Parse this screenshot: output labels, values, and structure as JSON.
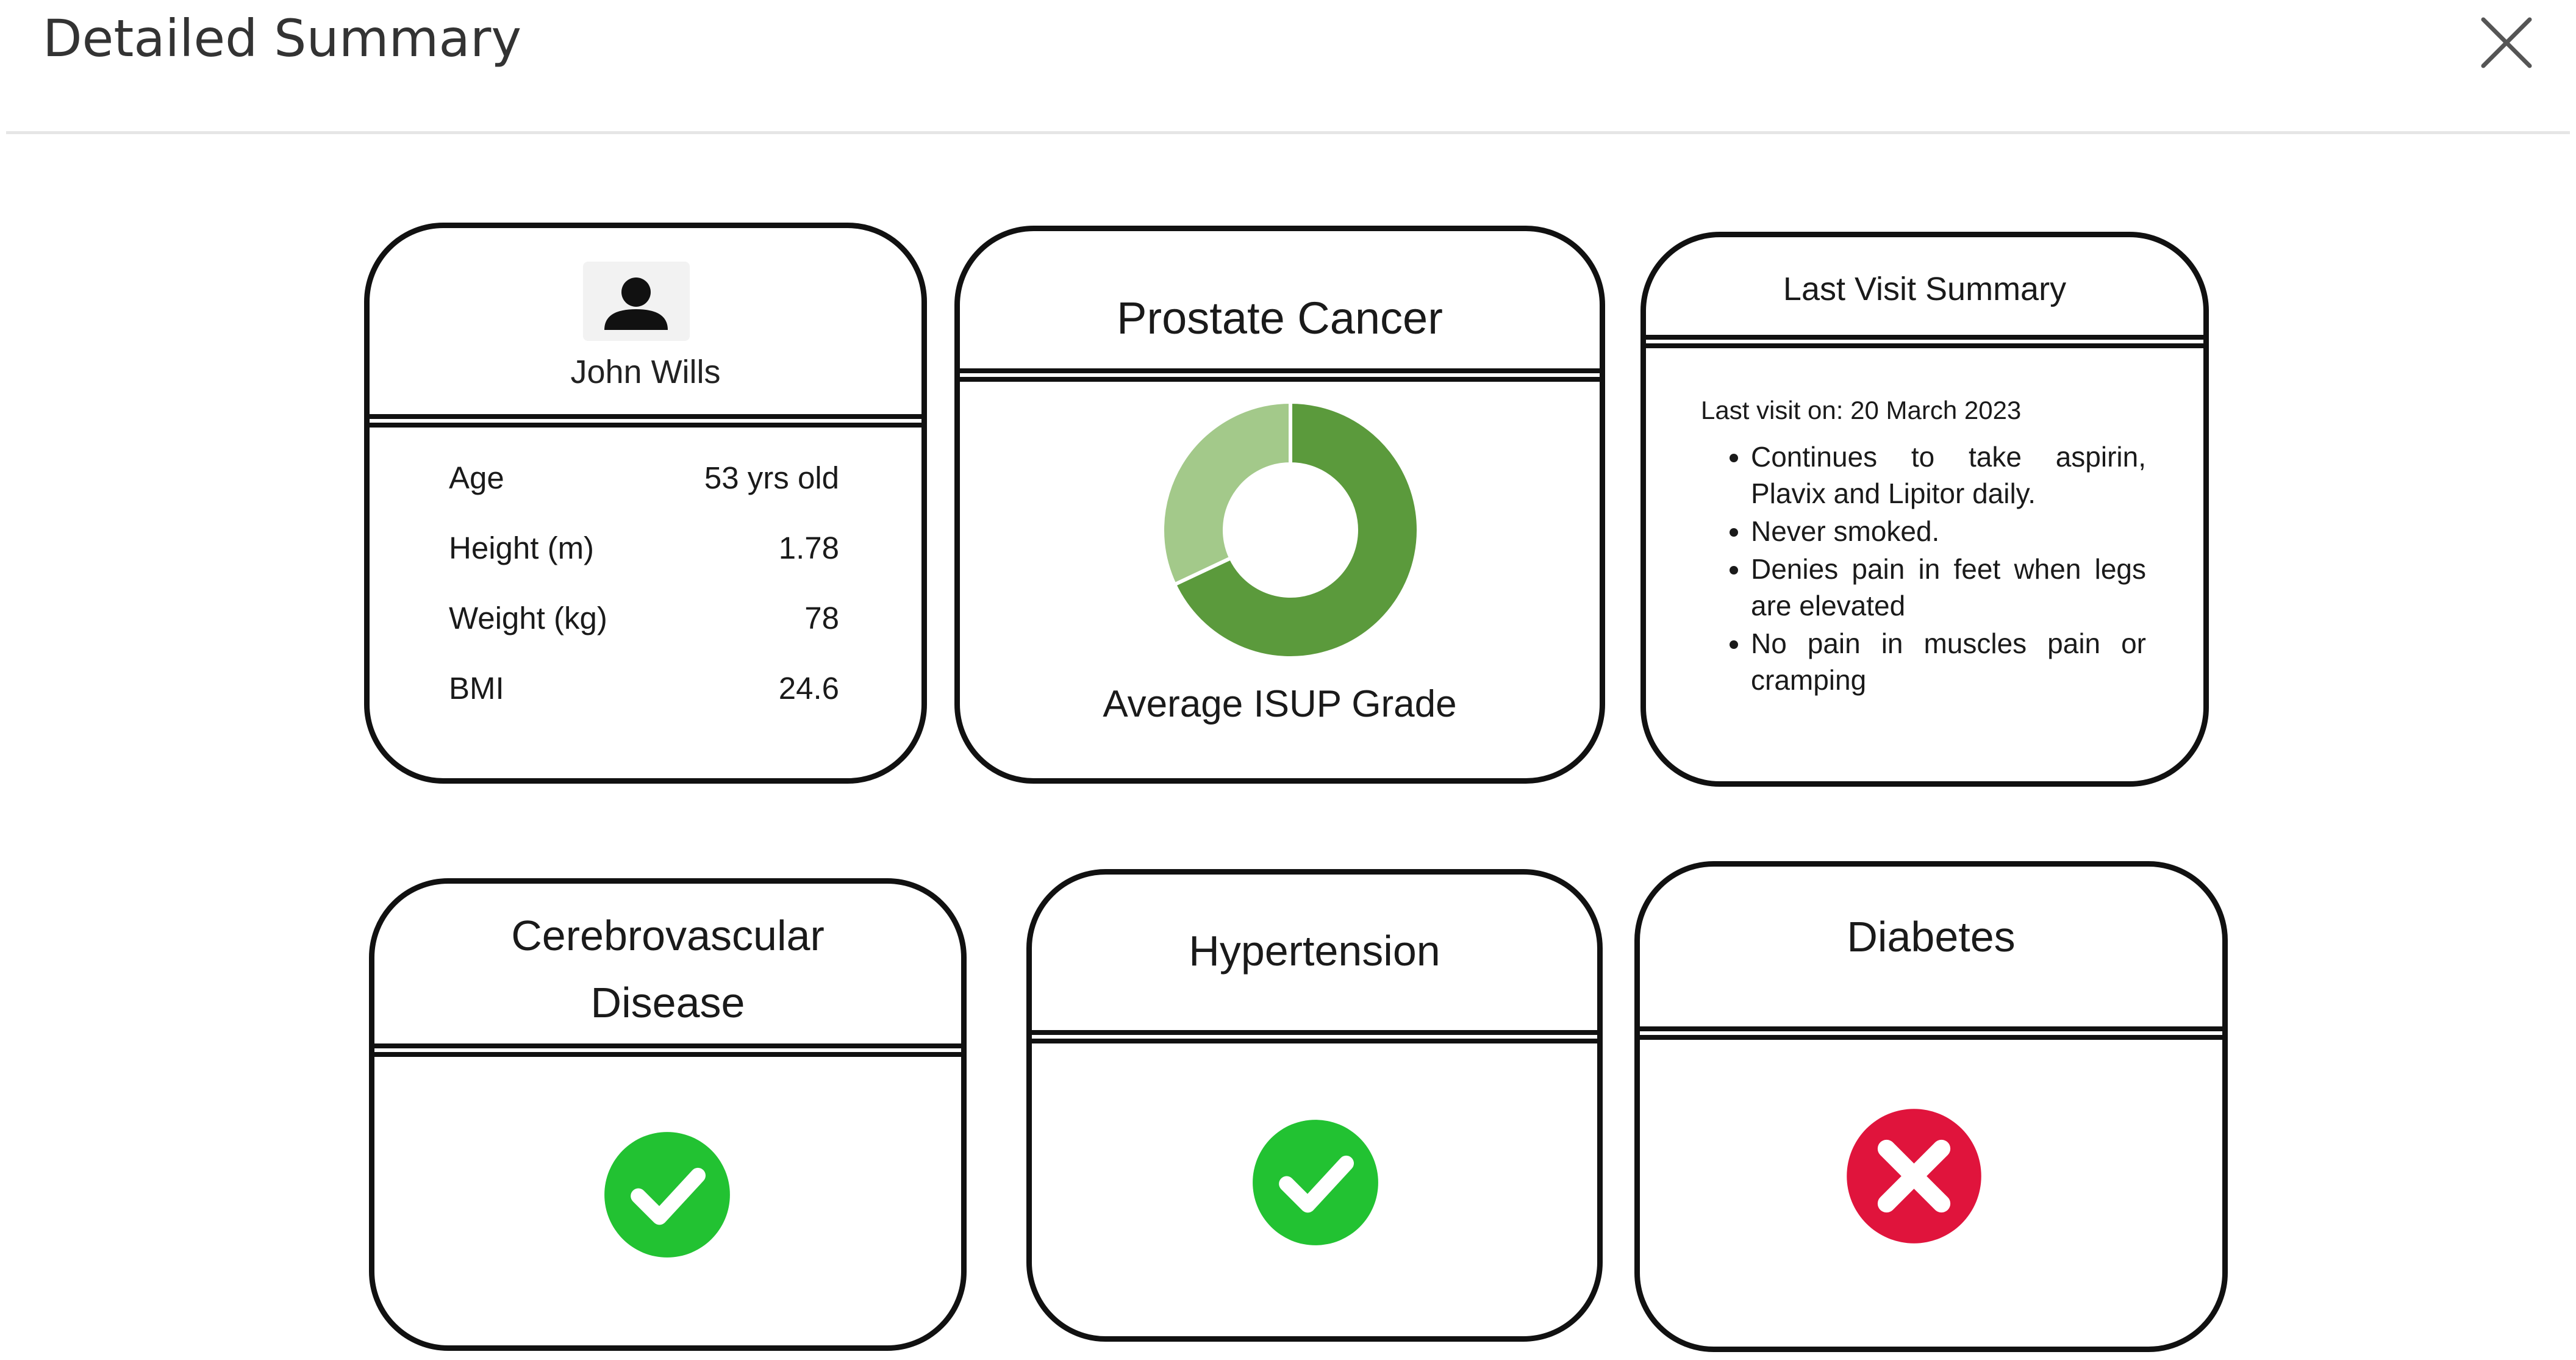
{
  "modal": {
    "title": "Detailed Summary",
    "close_icon": "close-icon"
  },
  "patient": {
    "avatar_icon": "person-icon",
    "name": "John Wills",
    "vitals": [
      {
        "label": "Age",
        "value": "53 yrs old"
      },
      {
        "label": "Height (m)",
        "value": "1.78"
      },
      {
        "label": "Weight (kg)",
        "value": "78"
      },
      {
        "label": "BMI",
        "value": "24.6"
      }
    ]
  },
  "prostate": {
    "title": "Prostate Cancer",
    "chart_label": "Average ISUP Grade",
    "chart_data": {
      "type": "pie",
      "title": "",
      "slices": [
        {
          "share": 0.68,
          "color": "#5b9a3c"
        },
        {
          "share": 0.32,
          "color": "#a3c98a"
        }
      ]
    }
  },
  "last_visit": {
    "title": "Last Visit Summary",
    "date_line": "Last visit on: 20 March 2023",
    "notes": [
      "Continues to take aspirin, Plavix and Lipitor daily.",
      "Never smoked.",
      "Denies pain in feet when legs are elevated",
      "No pain in muscles pain or cramping"
    ]
  },
  "conditions": [
    {
      "title_line1": "Cerebrovascular",
      "title_line2": "Disease",
      "status": "present",
      "icon": "check-circle-icon",
      "color": "#22c232"
    },
    {
      "title_line1": "Hypertension",
      "title_line2": "",
      "status": "present",
      "icon": "check-circle-icon",
      "color": "#22c232"
    },
    {
      "title_line1": "Diabetes",
      "title_line2": "",
      "status": "absent",
      "icon": "x-circle-icon",
      "color": "#e0143c"
    }
  ]
}
